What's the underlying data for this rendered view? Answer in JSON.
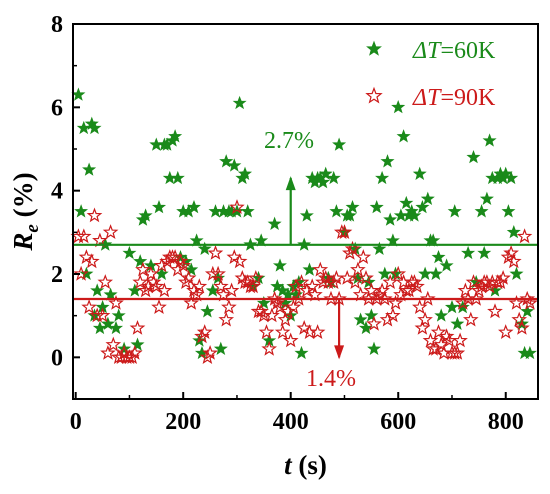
{
  "chart_data": {
    "type": "scatter",
    "title": "",
    "xlabel": {
      "symbol": "t",
      "unit": " (s)"
    },
    "ylabel": {
      "symbol": "R",
      "subscript": "e",
      "unit": " (%)"
    },
    "xlim": [
      -5,
      860
    ],
    "ylim": [
      -1,
      8
    ],
    "xticks": [
      0,
      200,
      400,
      600,
      800
    ],
    "yticks": [
      0,
      2,
      4,
      6,
      8
    ],
    "grid": false,
    "legend_position": "top-right",
    "series": [
      {
        "name_prefix": "ΔT",
        "name_suffix": "=60K",
        "marker": "filled-star",
        "color": "#1a8a1a",
        "mean": 2.7,
        "mean_label": "2.7%",
        "points": [
          [
            5,
            6.3
          ],
          [
            10,
            3.5
          ],
          [
            15,
            5.5
          ],
          [
            20,
            2.0
          ],
          [
            25,
            4.5
          ],
          [
            30,
            5.6
          ],
          [
            35,
            5.5
          ],
          [
            35,
            1.0
          ],
          [
            40,
            1.6
          ],
          [
            45,
            0.7
          ],
          [
            50,
            1.2
          ],
          [
            55,
            2.7
          ],
          [
            60,
            0.8
          ],
          [
            65,
            1.5
          ],
          [
            75,
            0.7
          ],
          [
            80,
            1.0
          ],
          [
            90,
            0.2
          ],
          [
            100,
            2.5
          ],
          [
            110,
            1.6
          ],
          [
            115,
            0.3
          ],
          [
            120,
            2.3
          ],
          [
            125,
            3.3
          ],
          [
            130,
            3.4
          ],
          [
            140,
            2.2
          ],
          [
            150,
            5.1
          ],
          [
            155,
            3.6
          ],
          [
            160,
            2.0
          ],
          [
            165,
            5.1
          ],
          [
            170,
            5.1
          ],
          [
            175,
            4.3
          ],
          [
            180,
            5.2
          ],
          [
            185,
            5.3
          ],
          [
            190,
            4.3
          ],
          [
            195,
            2.4
          ],
          [
            200,
            3.5
          ],
          [
            205,
            2.3
          ],
          [
            210,
            3.5
          ],
          [
            215,
            2.1
          ],
          [
            220,
            3.6
          ],
          [
            225,
            2.8
          ],
          [
            230,
            0.4
          ],
          [
            235,
            0.1
          ],
          [
            240,
            2.6
          ],
          [
            245,
            1.1
          ],
          [
            255,
            1.6
          ],
          [
            260,
            3.5
          ],
          [
            265,
            1.9
          ],
          [
            270,
            0.2
          ],
          [
            275,
            3.5
          ],
          [
            280,
            4.7
          ],
          [
            285,
            3.5
          ],
          [
            290,
            3.5
          ],
          [
            295,
            4.6
          ],
          [
            300,
            3.5
          ],
          [
            305,
            6.1
          ],
          [
            310,
            4.3
          ],
          [
            315,
            4.4
          ],
          [
            320,
            3.5
          ],
          [
            325,
            2.7
          ],
          [
            330,
            1.7
          ],
          [
            340,
            1.9
          ],
          [
            345,
            2.8
          ],
          [
            350,
            1.3
          ],
          [
            360,
            0.4
          ],
          [
            370,
            3.2
          ],
          [
            375,
            1.7
          ],
          [
            380,
            2.2
          ],
          [
            385,
            1.6
          ],
          [
            390,
            1.3
          ],
          [
            395,
            1.5
          ],
          [
            400,
            1.0
          ],
          [
            405,
            1.7
          ],
          [
            410,
            1.5
          ],
          [
            415,
            1.8
          ],
          [
            420,
            0.1
          ],
          [
            425,
            2.7
          ],
          [
            430,
            3.4
          ],
          [
            435,
            2.1
          ],
          [
            440,
            4.3
          ],
          [
            445,
            4.2
          ],
          [
            450,
            4.3
          ],
          [
            455,
            4.3
          ],
          [
            460,
            4.2
          ],
          [
            465,
            4.4
          ],
          [
            470,
            1.9
          ],
          [
            475,
            1.8
          ],
          [
            480,
            4.3
          ],
          [
            485,
            3.5
          ],
          [
            490,
            5.1
          ],
          [
            500,
            3.0
          ],
          [
            505,
            3.4
          ],
          [
            510,
            3.4
          ],
          [
            515,
            3.6
          ],
          [
            520,
            2.6
          ],
          [
            525,
            1.9
          ],
          [
            530,
            0.9
          ],
          [
            540,
            0.7
          ],
          [
            545,
            1.8
          ],
          [
            550,
            1.0
          ],
          [
            555,
            0.2
          ],
          [
            560,
            3.6
          ],
          [
            565,
            2.6
          ],
          [
            570,
            4.3
          ],
          [
            575,
            2.0
          ],
          [
            580,
            4.7
          ],
          [
            585,
            3.3
          ],
          [
            590,
            2.8
          ],
          [
            595,
            2.0
          ],
          [
            600,
            6.0
          ],
          [
            605,
            3.4
          ],
          [
            610,
            5.3
          ],
          [
            615,
            3.7
          ],
          [
            620,
            3.4
          ],
          [
            625,
            3.5
          ],
          [
            630,
            3.4
          ],
          [
            640,
            4.4
          ],
          [
            645,
            3.6
          ],
          [
            650,
            2.0
          ],
          [
            655,
            3.8
          ],
          [
            660,
            2.8
          ],
          [
            665,
            2.8
          ],
          [
            670,
            2.0
          ],
          [
            675,
            2.4
          ],
          [
            680,
            1.0
          ],
          [
            690,
            2.2
          ],
          [
            700,
            1.2
          ],
          [
            705,
            3.5
          ],
          [
            710,
            0.8
          ],
          [
            720,
            1.2
          ],
          [
            730,
            2.5
          ],
          [
            740,
            4.8
          ],
          [
            745,
            1.8
          ],
          [
            755,
            3.5
          ],
          [
            760,
            2.5
          ],
          [
            765,
            3.8
          ],
          [
            770,
            5.2
          ],
          [
            775,
            4.3
          ],
          [
            780,
            1.6
          ],
          [
            785,
            4.3
          ],
          [
            790,
            4.4
          ],
          [
            795,
            4.3
          ],
          [
            800,
            4.4
          ],
          [
            805,
            3.5
          ],
          [
            810,
            4.3
          ],
          [
            815,
            3.0
          ],
          [
            820,
            2.0
          ],
          [
            830,
            0.8
          ],
          [
            835,
            0.1
          ],
          [
            840,
            1.1
          ],
          [
            845,
            0.1
          ]
        ]
      },
      {
        "name_prefix": "ΔT",
        "name_suffix": "=90K",
        "marker": "hollow-star",
        "color": "#cc1a1a",
        "mean": 1.4,
        "mean_label": "1.4%",
        "points": [
          [
            5,
            2.9
          ],
          [
            10,
            2.0
          ],
          [
            15,
            2.9
          ],
          [
            20,
            2.4
          ],
          [
            25,
            1.2
          ],
          [
            30,
            2.3
          ],
          [
            35,
            3.4
          ],
          [
            40,
            1.0
          ],
          [
            45,
            2.8
          ],
          [
            50,
            1.0
          ],
          [
            55,
            1.8
          ],
          [
            60,
            0.1
          ],
          [
            65,
            3.0
          ],
          [
            70,
            0.3
          ],
          [
            75,
            1.3
          ],
          [
            80,
            0.0
          ],
          [
            85,
            0.0
          ],
          [
            90,
            0.1
          ],
          [
            95,
            0.0
          ],
          [
            100,
            0.0
          ],
          [
            105,
            0.0
          ],
          [
            110,
            0.1
          ],
          [
            115,
            0.7
          ],
          [
            120,
            1.8
          ],
          [
            125,
            2.1
          ],
          [
            130,
            1.6
          ],
          [
            135,
            1.7
          ],
          [
            140,
            2.0
          ],
          [
            145,
            1.8
          ],
          [
            150,
            1.7
          ],
          [
            155,
            1.2
          ],
          [
            160,
            2.2
          ],
          [
            165,
            1.6
          ],
          [
            170,
            2.3
          ],
          [
            175,
            2.4
          ],
          [
            180,
            2.4
          ],
          [
            185,
            2.4
          ],
          [
            190,
            2.1
          ],
          [
            195,
            2.3
          ],
          [
            200,
            2.2
          ],
          [
            205,
            1.8
          ],
          [
            210,
            1.9
          ],
          [
            215,
            1.3
          ],
          [
            220,
            1.6
          ],
          [
            225,
            1.5
          ],
          [
            230,
            1.7
          ],
          [
            235,
            0.5
          ],
          [
            240,
            0.6
          ],
          [
            245,
            0.0
          ],
          [
            250,
            0.1
          ],
          [
            255,
            2.0
          ],
          [
            260,
            2.5
          ],
          [
            265,
            2.0
          ],
          [
            270,
            1.7
          ],
          [
            275,
            1.5
          ],
          [
            280,
            0.9
          ],
          [
            285,
            1.2
          ],
          [
            290,
            1.6
          ],
          [
            295,
            2.4
          ],
          [
            300,
            3.6
          ],
          [
            305,
            2.3
          ],
          [
            310,
            1.9
          ],
          [
            315,
            1.8
          ],
          [
            320,
            1.8
          ],
          [
            325,
            1.7
          ],
          [
            330,
            1.7
          ],
          [
            335,
            1.9
          ],
          [
            340,
            1.1
          ],
          [
            345,
            1.1
          ],
          [
            350,
            1.0
          ],
          [
            355,
            0.6
          ],
          [
            360,
            0.2
          ],
          [
            365,
            1.0
          ],
          [
            370,
            1.4
          ],
          [
            375,
            1.3
          ],
          [
            380,
            1.2
          ],
          [
            385,
            0.6
          ],
          [
            390,
            0.9
          ],
          [
            395,
            1.1
          ],
          [
            400,
            0.4
          ],
          [
            405,
            1.2
          ],
          [
            410,
            1.7
          ],
          [
            415,
            1.4
          ],
          [
            420,
            1.8
          ],
          [
            425,
            0.7
          ],
          [
            430,
            1.6
          ],
          [
            435,
            0.6
          ],
          [
            440,
            1.7
          ],
          [
            445,
            1.5
          ],
          [
            450,
            0.6
          ],
          [
            455,
            2.1
          ],
          [
            460,
            1.8
          ],
          [
            465,
            1.9
          ],
          [
            470,
            1.8
          ],
          [
            475,
            1.4
          ],
          [
            480,
            1.8
          ],
          [
            485,
            1.9
          ],
          [
            490,
            1.4
          ],
          [
            495,
            3.0
          ],
          [
            500,
            3.0
          ],
          [
            505,
            1.9
          ],
          [
            510,
            2.5
          ],
          [
            515,
            2.6
          ],
          [
            520,
            1.8
          ],
          [
            525,
            2.1
          ],
          [
            530,
            1.5
          ],
          [
            535,
            2.4
          ],
          [
            540,
            1.9
          ],
          [
            545,
            1.4
          ],
          [
            550,
            1.6
          ],
          [
            555,
            0.8
          ],
          [
            560,
            1.4
          ],
          [
            565,
            1.5
          ],
          [
            570,
            1.6
          ],
          [
            575,
            1.4
          ],
          [
            580,
            0.9
          ],
          [
            585,
            1.8
          ],
          [
            590,
            1.0
          ],
          [
            595,
            1.3
          ],
          [
            600,
            2.0
          ],
          [
            605,
            1.5
          ],
          [
            610,
            1.8
          ],
          [
            615,
            1.6
          ],
          [
            620,
            1.6
          ],
          [
            625,
            1.8
          ],
          [
            630,
            1.8
          ],
          [
            635,
            1.7
          ],
          [
            640,
            1.2
          ],
          [
            645,
            0.7
          ],
          [
            650,
            0.9
          ],
          [
            655,
            1.4
          ],
          [
            660,
            0.4
          ],
          [
            665,
            0.2
          ],
          [
            670,
            0.2
          ],
          [
            675,
            0.6
          ],
          [
            680,
            0.3
          ],
          [
            685,
            0.1
          ],
          [
            690,
            0.5
          ],
          [
            695,
            0.4
          ],
          [
            700,
            0.1
          ],
          [
            705,
            0.1
          ],
          [
            710,
            0.1
          ],
          [
            715,
            0.4
          ],
          [
            720,
            1.3
          ],
          [
            725,
            1.6
          ],
          [
            730,
            1.4
          ],
          [
            735,
            0.9
          ],
          [
            740,
            1.8
          ],
          [
            745,
            1.4
          ],
          [
            750,
            1.6
          ],
          [
            755,
            1.7
          ],
          [
            760,
            1.8
          ],
          [
            765,
            1.8
          ],
          [
            770,
            1.7
          ],
          [
            775,
            1.8
          ],
          [
            780,
            1.1
          ],
          [
            785,
            1.8
          ],
          [
            790,
            1.8
          ],
          [
            795,
            1.9
          ],
          [
            800,
            0.6
          ],
          [
            805,
            2.4
          ],
          [
            810,
            2.5
          ],
          [
            815,
            2.3
          ],
          [
            820,
            1.3
          ],
          [
            825,
            0.9
          ],
          [
            830,
            0.7
          ],
          [
            835,
            2.9
          ],
          [
            840,
            1.4
          ],
          [
            845,
            1.3
          ]
        ]
      }
    ]
  }
}
